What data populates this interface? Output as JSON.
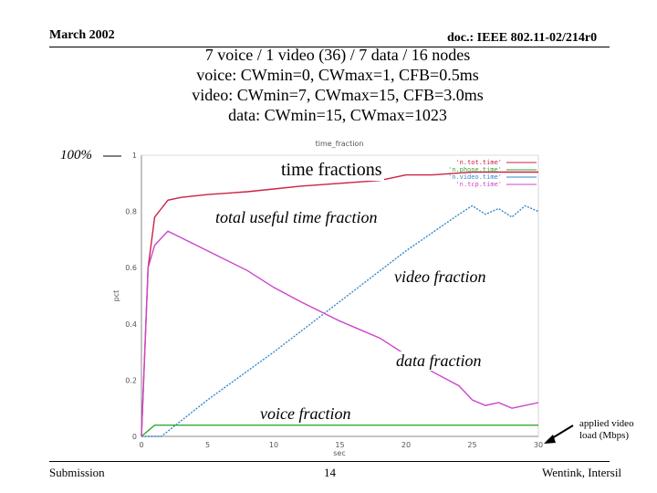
{
  "header": {
    "date": "March 2002",
    "doc": "doc.: IEEE 802.11-02/214r0"
  },
  "title_lines": [
    "7 voice / 1 video (36) / 7 data / 16 nodes",
    "voice: CWmin=0, CWmax=1, CFB=0.5ms",
    "video: CWmin=7, CWmax=15, CFB=3.0ms",
    "data: CWmin=15, CWmax=1023"
  ],
  "annotations": {
    "hundred_pct": "100%",
    "time_fractions": "time fractions",
    "total_useful": "total useful time fraction",
    "video_fraction": "video fraction",
    "data_fraction": "data fraction",
    "voice_fraction": "voice fraction",
    "applied_video_load": "applied video load (Mbps)"
  },
  "footer": {
    "left": "Submission",
    "center": "14",
    "right": "Wentink, Intersil"
  },
  "colors": {
    "tot": "#cc2244",
    "voice": "#33aa33",
    "video": "#3388cc",
    "tcp": "#cc44cc"
  },
  "chart_data": {
    "type": "line",
    "title": "time_fraction",
    "xlabel": "sec",
    "ylabel": "pct",
    "xlim": [
      0,
      30
    ],
    "ylim": [
      0,
      1
    ],
    "xticks": [
      "0",
      "5",
      "10",
      "15",
      "20",
      "25",
      "30"
    ],
    "yticks": [
      "0",
      "0.2",
      "0.4",
      "0.6",
      "0.8",
      "1"
    ],
    "grid": false,
    "legend": "top-right",
    "series": [
      {
        "name": "'n.tot.time'",
        "color": "#cc2244",
        "x": [
          0,
          0.5,
          1.0,
          1.5,
          2,
          3,
          5,
          8,
          10,
          12,
          15,
          18,
          20,
          22,
          25,
          27,
          28,
          29,
          30
        ],
        "y": [
          0,
          0.6,
          0.78,
          0.81,
          0.84,
          0.85,
          0.86,
          0.87,
          0.88,
          0.89,
          0.9,
          0.91,
          0.93,
          0.93,
          0.94,
          0.94,
          0.94,
          0.94,
          0.94
        ]
      },
      {
        "name": "'n.phone.time'",
        "color": "#33aa33",
        "x": [
          0,
          0.5,
          1.0,
          1.5,
          30
        ],
        "y": [
          0,
          0.02,
          0.04,
          0.04,
          0.04
        ]
      },
      {
        "name": "'n.video.time'",
        "color": "#3388cc",
        "x": [
          0,
          1.5,
          5,
          10,
          15,
          20,
          24,
          25,
          26,
          27,
          28,
          29,
          30
        ],
        "y": [
          0,
          0,
          0.13,
          0.3,
          0.48,
          0.66,
          0.79,
          0.82,
          0.79,
          0.81,
          0.78,
          0.82,
          0.8
        ]
      },
      {
        "name": "'n.tcp.time'",
        "color": "#cc44cc",
        "x": [
          0,
          0.5,
          1.0,
          2,
          5,
          8,
          10,
          12,
          15,
          18,
          20,
          22,
          24,
          25,
          26,
          27,
          28,
          29,
          30
        ],
        "y": [
          0,
          0.6,
          0.68,
          0.73,
          0.66,
          0.59,
          0.53,
          0.48,
          0.41,
          0.35,
          0.29,
          0.23,
          0.18,
          0.13,
          0.11,
          0.12,
          0.1,
          0.11,
          0.12
        ]
      }
    ]
  }
}
